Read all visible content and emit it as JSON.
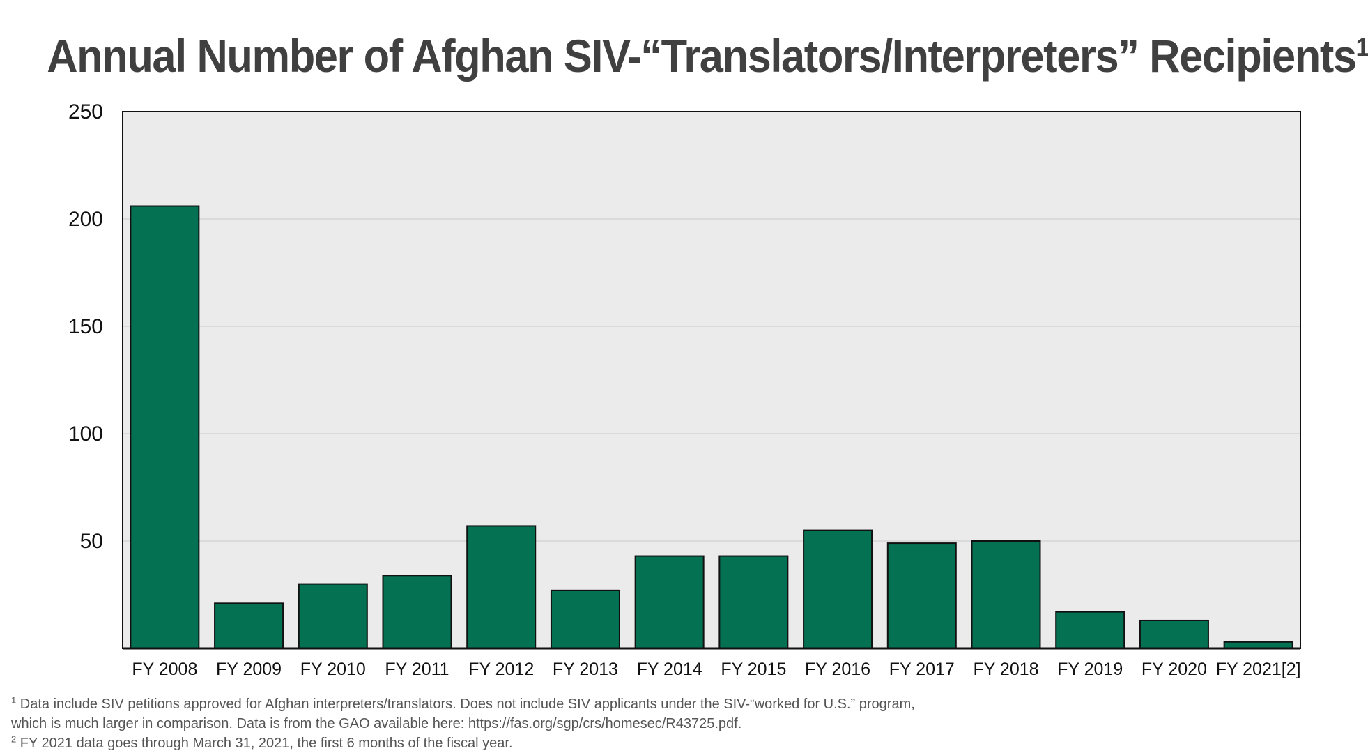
{
  "chart_data": {
    "type": "bar",
    "title": "Annual Number of Afghan SIV-“Translators/Interpreters” Recipients",
    "title_footnote_mark": "1",
    "xlabel": "",
    "ylabel": "",
    "categories": [
      "FY 2008",
      "FY 2009",
      "FY 2010",
      "FY 2011",
      "FY 2012",
      "FY 2013",
      "FY 2014",
      "FY 2015",
      "FY 2016",
      "FY 2017",
      "FY 2018",
      "FY 2019",
      "FY 2020",
      "FY 2021[2]"
    ],
    "values": [
      206,
      21,
      30,
      34,
      57,
      27,
      43,
      43,
      55,
      49,
      50,
      17,
      13,
      3
    ],
    "ylim": [
      0,
      250
    ],
    "yticks": [
      50,
      100,
      150,
      200,
      250
    ],
    "grid": true,
    "legend": "none",
    "colors": {
      "bar": "#037152",
      "bar_outline": "#111111",
      "plot_background": "#ebebeb",
      "gridline": "#c8c8c8",
      "title": "#404040"
    }
  },
  "footnotes": [
    {
      "mark": "1",
      "lines": [
        "Data include SIV petitions approved for Afghan interpreters/translators. Does not include SIV applicants under the SIV-“worked for U.S.” program,",
        "which is much larger in comparison. Data is from the GAO available here: https://fas.org/sgp/crs/homesec/R43725.pdf."
      ]
    },
    {
      "mark": "2",
      "lines": [
        "FY 2021 data goes through March 31, 2021, the first 6 months of the fiscal year."
      ]
    }
  ]
}
